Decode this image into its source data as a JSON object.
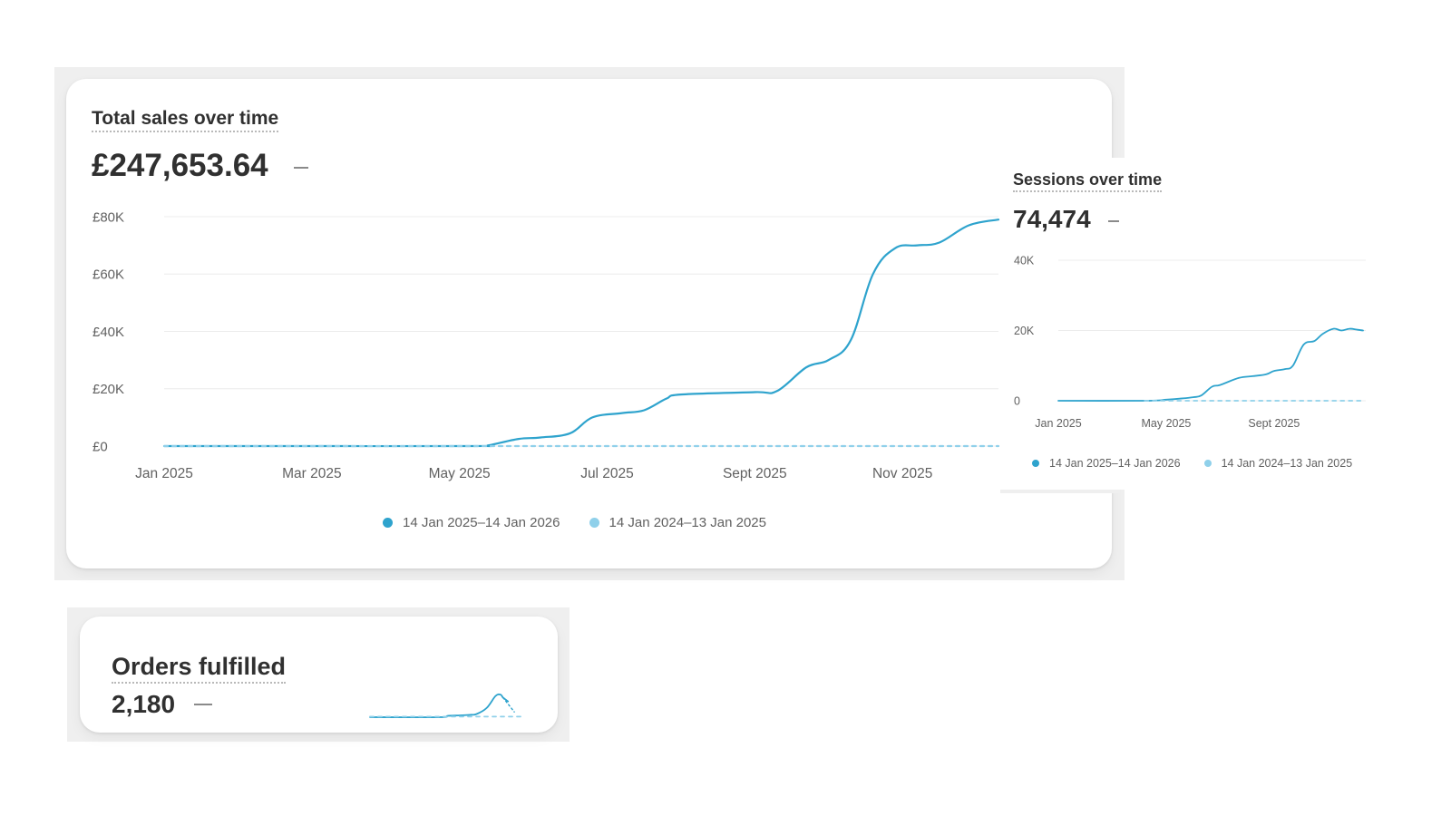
{
  "colors": {
    "current": "#2ea3cd",
    "previous": "#8fd0ea",
    "grid": "#ececec",
    "axis_text": "#616161"
  },
  "chart_data": [
    {
      "type": "line",
      "title": "Total sales over time",
      "metric_value": "£247,653.64",
      "metric_change": "—",
      "x_tick_labels": [
        "Jan 2025",
        "Mar 2025",
        "May 2025",
        "Jul 2025",
        "Sept 2025",
        "Nov 2025"
      ],
      "y_tick_labels": [
        "£0",
        "£20K",
        "£40K",
        "£60K",
        "£80K"
      ],
      "y_ticks": [
        0,
        20000,
        40000,
        60000,
        80000
      ],
      "ylim": [
        0,
        80000
      ],
      "x_range_months": [
        0,
        11.3
      ],
      "legend": [
        "14 Jan 2025–14 Jan 2026",
        "14 Jan 2024–13 Jan 2025"
      ],
      "series": [
        {
          "name": "14 Jan 2025–14 Jan 2026",
          "style": "solid",
          "x_months": [
            0,
            2,
            4.2,
            4.4,
            4.8,
            5.1,
            5.5,
            5.8,
            6.2,
            6.5,
            6.8,
            7,
            8,
            8.3,
            8.7,
            9,
            9.3,
            9.6,
            9.9,
            10.2,
            10.5,
            10.9,
            11.3
          ],
          "values": [
            0,
            0,
            0,
            300,
            2500,
            3000,
            4500,
            10000,
            11500,
            12500,
            16500,
            18000,
            18800,
            19200,
            27500,
            30000,
            37000,
            60000,
            69000,
            70000,
            71000,
            77000,
            79000
          ]
        },
        {
          "name": "14 Jan 2024–13 Jan 2025",
          "style": "dashed",
          "x_months": [
            0,
            11.3
          ],
          "values": [
            0,
            0
          ]
        }
      ]
    },
    {
      "type": "line",
      "title": "Sessions over time",
      "metric_value": "74,474",
      "metric_change": "—",
      "x_tick_labels": [
        "Jan 2025",
        "May 2025",
        "Sept 2025"
      ],
      "y_tick_labels": [
        "0",
        "20K",
        "40K"
      ],
      "y_ticks": [
        0,
        20000,
        40000
      ],
      "ylim": [
        0,
        40000
      ],
      "x_range_months": [
        0,
        11.3
      ],
      "legend": [
        "14 Jan 2025–14 Jan 2026",
        "14 Jan 2024–13 Jan 2025"
      ],
      "series": [
        {
          "name": "14 Jan 2025–14 Jan 2026",
          "style": "solid",
          "x_months": [
            0,
            3.2,
            4,
            4.5,
            5,
            5.3,
            5.7,
            6,
            6.7,
            7.2,
            7.7,
            8,
            8.4,
            8.7,
            9.1,
            9.5,
            9.8,
            10.2,
            10.5,
            10.8,
            11.1,
            11.3
          ],
          "values": [
            0,
            0,
            300,
            600,
            1000,
            1500,
            4000,
            4500,
            6500,
            7000,
            7500,
            8500,
            9000,
            10000,
            16000,
            17000,
            19000,
            20500,
            20000,
            20500,
            20200,
            20000
          ]
        },
        {
          "name": "14 Jan 2024–13 Jan 2025",
          "style": "dashed",
          "x_months": [
            3.2,
            11.3
          ],
          "values": [
            0,
            0
          ]
        }
      ]
    },
    {
      "type": "line",
      "title": "Orders fulfilled",
      "metric_value": "2,180",
      "metric_change": "—",
      "x_range_months": [
        0,
        12
      ],
      "ylim": [
        0,
        100
      ],
      "series": [
        {
          "name": "current",
          "style": "solid",
          "x_months": [
            0,
            5.5,
            6.2,
            7.2,
            8,
            8.5,
            9.3,
            10,
            10.4,
            10.6,
            11
          ],
          "values": [
            0,
            0,
            5,
            7,
            9,
            12,
            35,
            80,
            86,
            75,
            60
          ]
        },
        {
          "name": "previous",
          "style": "dashed",
          "x_months": [
            0,
            12
          ],
          "values": [
            2,
            2
          ]
        },
        {
          "name": "current-tail",
          "style": "dotted",
          "x_months": [
            10.6,
            11.5
          ],
          "values": [
            75,
            20
          ]
        }
      ]
    }
  ]
}
